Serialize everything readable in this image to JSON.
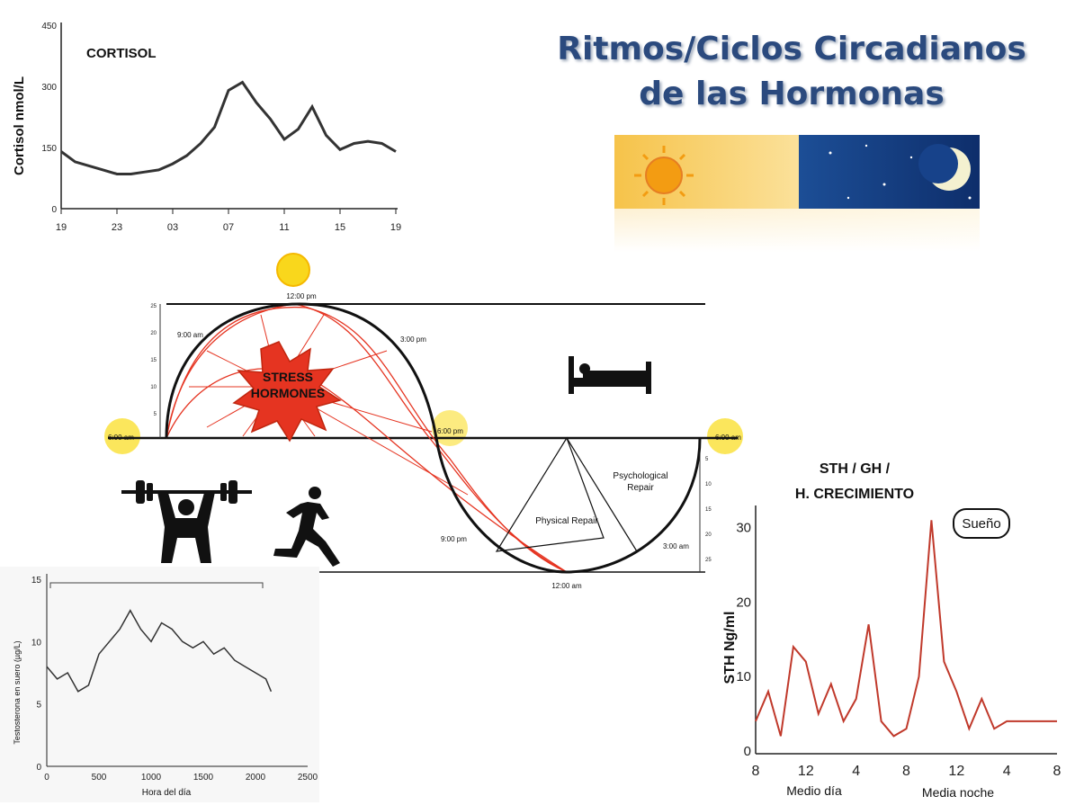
{
  "title": {
    "line1": "Ritmos/Ciclos Circadianos",
    "line2": "de las Hormonas"
  },
  "cortisol": {
    "label": "CORTISOL",
    "ylabel": "Cortisol nmol/L",
    "xticks": [
      "19",
      "23",
      "03",
      "07",
      "11",
      "15",
      "19"
    ],
    "yticks": [
      "0",
      "150",
      "300",
      "450"
    ],
    "chart_data": {
      "type": "line",
      "title": "CORTISOL",
      "xlabel": "",
      "ylabel": "Cortisol nmol/L",
      "ylim": [
        0,
        450
      ],
      "x": [
        19,
        20,
        21,
        22,
        23,
        24,
        25,
        26,
        27,
        28,
        29,
        30,
        31,
        32,
        33,
        34,
        35,
        36,
        37,
        38,
        39,
        40,
        41,
        42,
        43
      ],
      "y": [
        140,
        115,
        105,
        95,
        85,
        85,
        90,
        95,
        110,
        130,
        160,
        200,
        290,
        310,
        260,
        220,
        170,
        195,
        250,
        180,
        145,
        160,
        165,
        160,
        140
      ]
    }
  },
  "circadian": {
    "stress_line1": "STRESS",
    "stress_line2": "HORMONES",
    "t_noon": "12:00 pm",
    "t_9am": "9:00 am",
    "t_3pm": "3:00 pm",
    "t_6am_left": "6:00 am",
    "t_6pm": "6:00 pm",
    "t_6am_right": "6:00 am",
    "t_9pm": "9:00 pm",
    "t_3am": "3:00 am",
    "t_midnight": "12:00 am",
    "physical": "Physical Repair",
    "psych_line1": "Psychological",
    "psych_line2": "Repair",
    "left_ticks": [
      "25",
      "20",
      "15",
      "10",
      "5"
    ],
    "right_ticks": [
      "5",
      "10",
      "15",
      "20",
      "25"
    ]
  },
  "sth": {
    "label_line1": "STH / GH /",
    "label_line2": "H. CRECIMIENTO",
    "ylabel": "STH Ng/ml",
    "sueno": "Sueño",
    "xticks": [
      "8",
      "12",
      "4",
      "8",
      "12",
      "4",
      "8"
    ],
    "xsub1": "Medio día",
    "xsub2": "Media noche",
    "yticks": [
      "0",
      "10",
      "20",
      "30"
    ],
    "chart_data": {
      "type": "line",
      "title": "STH / GH / H. CRECIMIENTO",
      "xlabel": "",
      "ylabel": "STH Ng/ml",
      "ylim": [
        0,
        32
      ],
      "x": [
        8,
        9,
        10,
        11,
        12,
        13,
        14,
        15,
        16,
        17,
        18,
        19,
        20,
        21,
        22,
        23,
        24,
        25,
        26,
        27,
        28,
        29,
        30,
        31,
        32
      ],
      "y": [
        4,
        8,
        2,
        14,
        12,
        5,
        9,
        4,
        7,
        17,
        4,
        2,
        3,
        10,
        31,
        12,
        8,
        3,
        7,
        3,
        4,
        4,
        4,
        4,
        4
      ]
    }
  },
  "testosterone": {
    "ylabel": "Testosterona en suero (µg/L)",
    "xlabel": "Hora del día",
    "xticks": [
      "0",
      "500",
      "1000",
      "1500",
      "2000",
      "2500"
    ],
    "yticks": [
      "0",
      "5",
      "10",
      "15"
    ],
    "chart_data": {
      "type": "line",
      "xlabel": "Hora del día",
      "ylabel": "Testosterona en suero (µg/L)",
      "xlim": [
        0,
        2500
      ],
      "ylim": [
        0,
        15
      ],
      "x": [
        0,
        100,
        200,
        300,
        400,
        500,
        600,
        700,
        800,
        900,
        1000,
        1100,
        1200,
        1300,
        1400,
        1500,
        1600,
        1700,
        1800,
        1900,
        2000,
        2100,
        2150
      ],
      "y": [
        8,
        7,
        7.5,
        6,
        6.5,
        9,
        10,
        11,
        12.5,
        11,
        10,
        11.5,
        11,
        10,
        9.5,
        10,
        9,
        9.5,
        8.5,
        8,
        7.5,
        7,
        6
      ]
    }
  }
}
